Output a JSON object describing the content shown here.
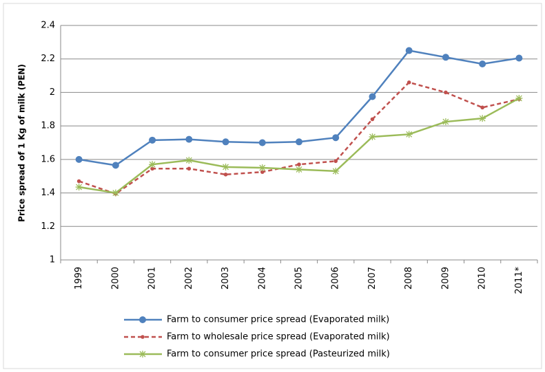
{
  "chart_data": {
    "type": "line",
    "y_label": "Price spread  of 1 Kg of milk (PEN)",
    "categories": [
      "1999",
      "2000",
      "2001",
      "2002",
      "2003",
      "2004",
      "2005",
      "2006",
      "2007",
      "2008",
      "2009",
      "2010",
      "2011*"
    ],
    "series": [
      {
        "name": "Farm to consumer price spread (Evaporated milk)",
        "color": "#4f81bd",
        "marker": "circle",
        "dashed": false,
        "values": [
          1.6,
          1.565,
          1.715,
          1.72,
          1.705,
          1.7,
          1.705,
          1.73,
          1.975,
          2.25,
          2.21,
          2.17,
          2.205
        ]
      },
      {
        "name": "Farm to wholesale price spread (Evaporated milk)",
        "color": "#c0504d",
        "marker": "dot",
        "dashed": true,
        "values": [
          1.47,
          1.395,
          1.545,
          1.545,
          1.51,
          1.525,
          1.57,
          1.59,
          1.84,
          2.06,
          2.0,
          1.91,
          1.96
        ]
      },
      {
        "name": "Farm to consumer price spread (Pasteurized milk)",
        "color": "#9bbb59",
        "marker": "star",
        "dashed": false,
        "values": [
          1.435,
          1.4,
          1.57,
          1.595,
          1.555,
          1.55,
          1.54,
          1.53,
          1.735,
          1.75,
          1.825,
          1.845,
          1.965
        ]
      }
    ],
    "ylim": [
      1,
      2.4
    ],
    "yticks": [
      1,
      1.2,
      1.4,
      1.6,
      1.8,
      2,
      2.2,
      2.4
    ],
    "grid": true
  }
}
